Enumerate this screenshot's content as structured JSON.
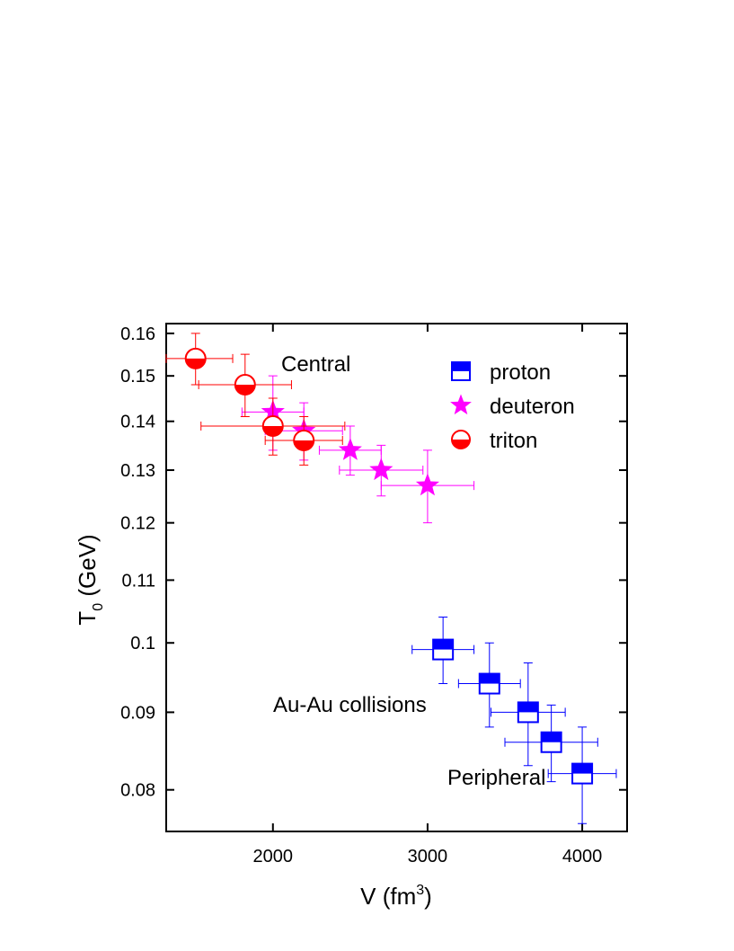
{
  "chart_data": {
    "type": "scatter",
    "xlabel": {
      "main": "V (fm",
      "sup": "3",
      "end": ")"
    },
    "ylabel": {
      "main": "T",
      "sub": "0",
      "end": " (GeV)"
    },
    "annotations": [
      "Central",
      "Au-Au collisions",
      "Peripheral"
    ],
    "xlim": [
      1310,
      4290
    ],
    "xticks": [
      2000,
      3000,
      4000
    ],
    "ylim": [
      0.0751,
      0.1624
    ],
    "yticks": [
      0.08,
      0.09,
      0.1,
      0.11,
      0.12,
      0.13,
      0.14,
      0.15,
      0.16
    ],
    "log_y": true,
    "legend": "upper right",
    "series": [
      {
        "name": "proton",
        "color": "#0000ff",
        "marker": "half-square",
        "x": [
          3100,
          3400,
          3650,
          3800,
          4000
        ],
        "y": [
          0.099,
          0.094,
          0.09,
          0.086,
          0.082
        ],
        "xerr": [
          200,
          200,
          240,
          300,
          220
        ],
        "yerr": [
          0.005,
          0.006,
          0.007,
          0.005,
          0.006
        ]
      },
      {
        "name": "deuteron",
        "color": "#ff00ff",
        "marker": "star",
        "x": [
          2000,
          2200,
          2500,
          2700,
          3000
        ],
        "y": [
          0.142,
          0.138,
          0.134,
          0.13,
          0.127
        ],
        "xerr": [
          200,
          250,
          200,
          270,
          300
        ],
        "yerr": [
          0.008,
          0.006,
          0.005,
          0.005,
          0.007
        ]
      },
      {
        "name": "triton",
        "color": "#ff0000",
        "marker": "half-circle",
        "x": [
          1500,
          1820,
          2000,
          2200
        ],
        "y": [
          0.154,
          0.148,
          0.139,
          0.136
        ],
        "xerr": [
          240,
          300,
          465,
          250
        ],
        "yerr": [
          0.006,
          0.007,
          0.006,
          0.005
        ]
      }
    ]
  }
}
